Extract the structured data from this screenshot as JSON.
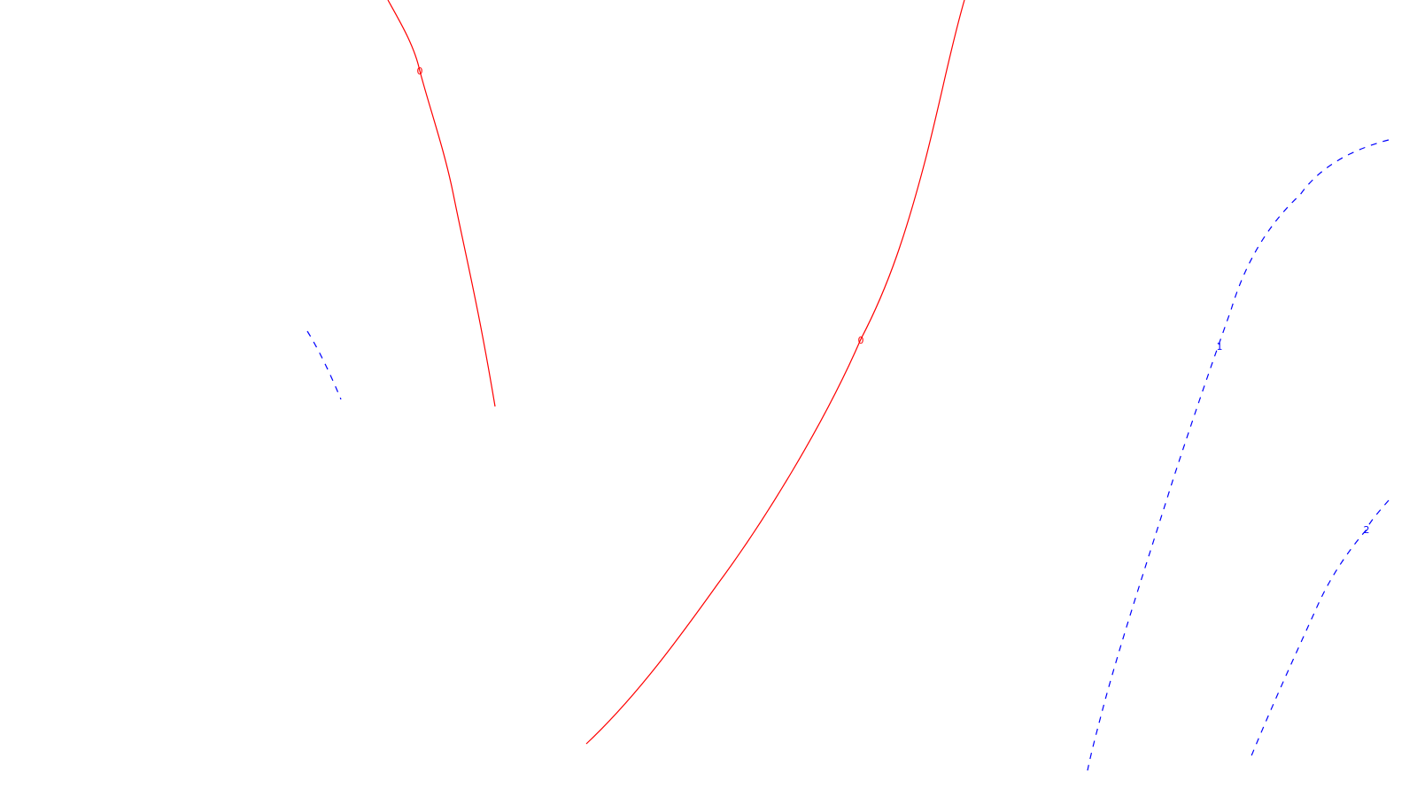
{
  "contour_plot": {
    "colors": {
      "background": "#ffffff",
      "zero_level": "#ff0000",
      "positive_level": "#0000ff"
    },
    "line_styles": {
      "zero_level": "solid",
      "positive_level": "dashed"
    },
    "levels": [
      {
        "id": "zero-left",
        "value": "0",
        "color": "#ff0000",
        "style": "solid"
      },
      {
        "id": "zero-right",
        "value": "0",
        "color": "#ff0000",
        "style": "solid"
      },
      {
        "id": "short-dashed-fragment",
        "value": "",
        "color": "#0000ff",
        "style": "dashed"
      },
      {
        "id": "one",
        "value": "1",
        "color": "#0000ff",
        "style": "dashed"
      },
      {
        "id": "two",
        "value": "2",
        "color": "#0000ff",
        "style": "dashed"
      }
    ]
  }
}
